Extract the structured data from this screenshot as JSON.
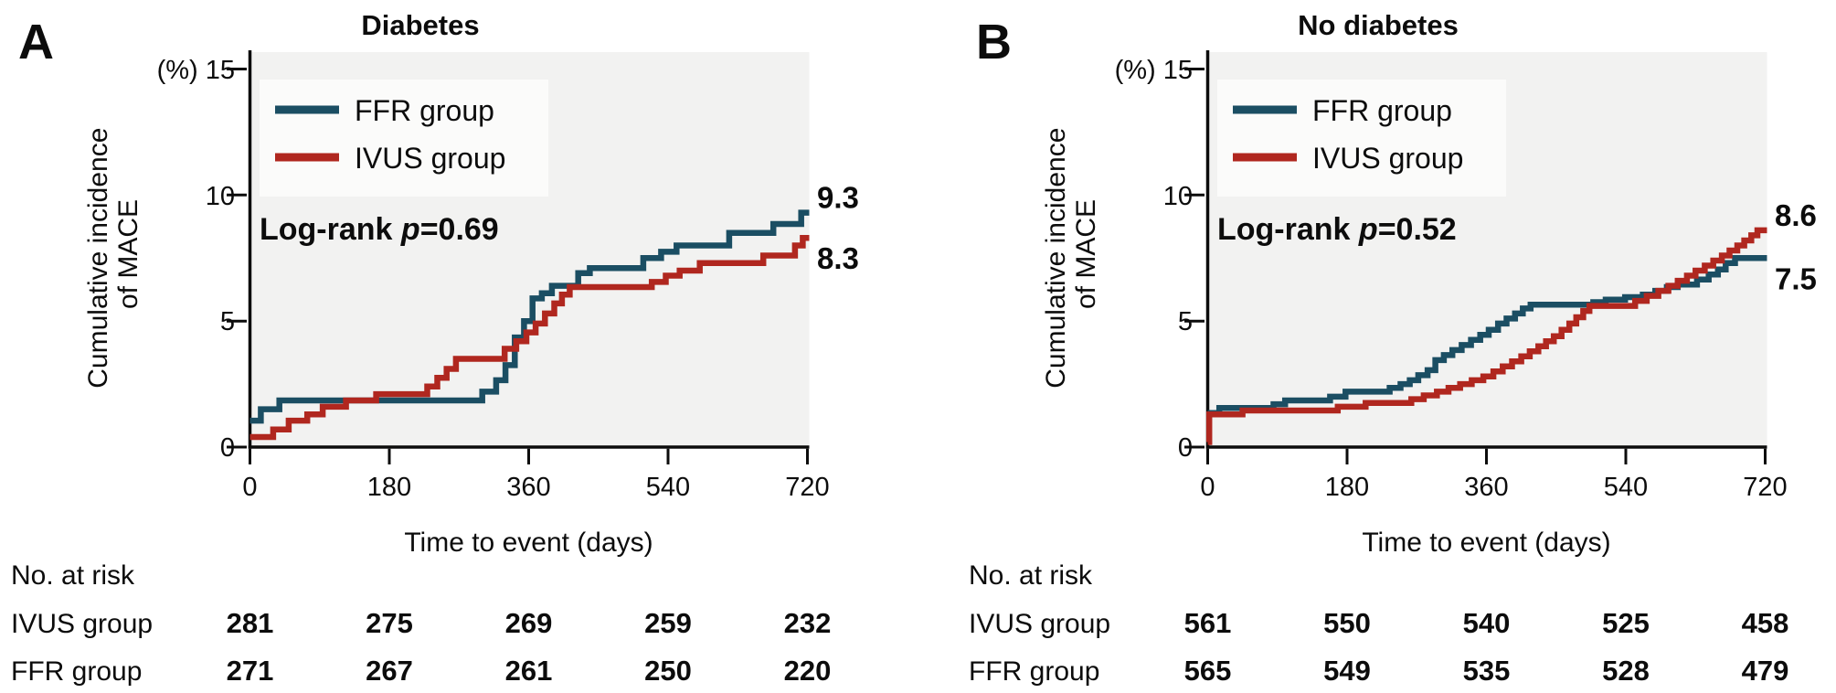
{
  "figure_colors": {
    "ffr_teal": "#1b4e63",
    "ivus_red": "#b0271f",
    "plot_bg": "#f2f2f1",
    "legend_bg": "#fbfbfa",
    "axis": "#0c0c0c"
  },
  "chart_data": [
    {
      "type": "line",
      "panel_letter": "A",
      "title": "Diabetes",
      "xlabel": "Time to event (days)",
      "ylabel": "Cumulative incidence of MACE",
      "ylabel_lines": [
        "Cumulative incidence",
        "of MACE"
      ],
      "y_top_label": "(%) 15",
      "xlim": [
        0,
        720
      ],
      "ylim": [
        0,
        15
      ],
      "xticks": [
        0,
        180,
        360,
        540,
        720
      ],
      "yticks": [
        0,
        5,
        10,
        15
      ],
      "xtick_labels": [
        "0",
        "180",
        "360",
        "540",
        "720"
      ],
      "ytick_labels": [
        "0",
        "5",
        "10"
      ],
      "grid": false,
      "legend_position": "upper-left-inside",
      "logrank": {
        "prefix": "Log-rank ",
        "p": "p",
        "rest": "=0.69",
        "full_text": "Log-rank p=0.69"
      },
      "series": [
        {
          "name": "FFR group",
          "color": "#1b4e63",
          "end_label": "9.3",
          "final_value": 9.3,
          "points": [
            [
              0,
              1.05
            ],
            [
              14,
              1.5
            ],
            [
              38,
              1.85
            ],
            [
              300,
              2.2
            ],
            [
              318,
              2.65
            ],
            [
              330,
              3.25
            ],
            [
              342,
              4.35
            ],
            [
              354,
              5.0
            ],
            [
              365,
              5.9
            ],
            [
              377,
              6.1
            ],
            [
              390,
              6.4
            ],
            [
              424,
              6.9
            ],
            [
              439,
              7.1
            ],
            [
              508,
              7.5
            ],
            [
              531,
              7.75
            ],
            [
              551,
              8.0
            ],
            [
              619,
              8.5
            ],
            [
              676,
              8.85
            ],
            [
              712,
              9.3
            ]
          ]
        },
        {
          "name": "IVUS group",
          "color": "#b0271f",
          "end_label": "8.3",
          "final_value": 8.3,
          "points": [
            [
              0,
              0.4
            ],
            [
              30,
              0.7
            ],
            [
              50,
              1.05
            ],
            [
              74,
              1.3
            ],
            [
              94,
              1.6
            ],
            [
              124,
              1.85
            ],
            [
              163,
              2.1
            ],
            [
              229,
              2.4
            ],
            [
              242,
              2.75
            ],
            [
              254,
              3.1
            ],
            [
              266,
              3.5
            ],
            [
              329,
              3.9
            ],
            [
              344,
              4.2
            ],
            [
              357,
              4.55
            ],
            [
              369,
              4.9
            ],
            [
              381,
              5.3
            ],
            [
              393,
              5.7
            ],
            [
              403,
              6.05
            ],
            [
              413,
              6.35
            ],
            [
              519,
              6.55
            ],
            [
              537,
              6.8
            ],
            [
              555,
              7.0
            ],
            [
              581,
              7.3
            ],
            [
              663,
              7.6
            ],
            [
              704,
              8.0
            ],
            [
              714,
              8.3
            ]
          ]
        }
      ],
      "at_risk": {
        "heading": "No. at risk",
        "rows": [
          {
            "label": "IVUS group",
            "color": "#1b4e63",
            "values": [
              "281",
              "275",
              "269",
              "259",
              "232"
            ]
          },
          {
            "label": "FFR group",
            "color": "#b0271f",
            "values": [
              "271",
              "267",
              "261",
              "250",
              "220"
            ]
          }
        ]
      }
    },
    {
      "type": "line",
      "panel_letter": "B",
      "title": "No diabetes",
      "xlabel": "Time to event (days)",
      "ylabel": "Cumulative incidence of MACE",
      "ylabel_lines": [
        "Cumulative incidence",
        "of MACE"
      ],
      "y_top_label": "(%) 15",
      "xlim": [
        0,
        720
      ],
      "ylim": [
        0,
        15
      ],
      "xticks": [
        0,
        180,
        360,
        540,
        720
      ],
      "yticks": [
        0,
        5,
        10,
        15
      ],
      "xtick_labels": [
        "0",
        "180",
        "360",
        "540",
        "720"
      ],
      "ytick_labels": [
        "0",
        "5",
        "10"
      ],
      "grid": false,
      "legend_position": "upper-left-inside",
      "logrank": {
        "prefix": "Log-rank ",
        "p": "p",
        "rest": "=0.52",
        "full_text": "Log-rank p=0.52"
      },
      "series": [
        {
          "name": "FFR group",
          "color": "#1b4e63",
          "end_label": "7.5",
          "final_value": 7.5,
          "points": [
            [
              0,
              1.35
            ],
            [
              15,
              1.55
            ],
            [
              85,
              1.7
            ],
            [
              100,
              1.85
            ],
            [
              158,
              2.0
            ],
            [
              178,
              2.2
            ],
            [
              235,
              2.35
            ],
            [
              249,
              2.5
            ],
            [
              261,
              2.65
            ],
            [
              272,
              2.85
            ],
            [
              284,
              3.05
            ],
            [
              294,
              3.45
            ],
            [
              305,
              3.65
            ],
            [
              316,
              3.85
            ],
            [
              328,
              4.05
            ],
            [
              340,
              4.25
            ],
            [
              352,
              4.45
            ],
            [
              363,
              4.65
            ],
            [
              375,
              4.9
            ],
            [
              386,
              5.1
            ],
            [
              397,
              5.3
            ],
            [
              407,
              5.5
            ],
            [
              417,
              5.65
            ],
            [
              498,
              5.75
            ],
            [
              514,
              5.85
            ],
            [
              539,
              5.95
            ],
            [
              562,
              6.05
            ],
            [
              578,
              6.2
            ],
            [
              593,
              6.35
            ],
            [
              607,
              6.45
            ],
            [
              632,
              6.65
            ],
            [
              647,
              6.85
            ],
            [
              659,
              7.05
            ],
            [
              669,
              7.3
            ],
            [
              681,
              7.5
            ]
          ]
        },
        {
          "name": "IVUS group",
          "color": "#b0271f",
          "end_label": "8.6",
          "final_value": 8.6,
          "points": [
            [
              0,
              0.2
            ],
            [
              2,
              1.3
            ],
            [
              45,
              1.45
            ],
            [
              168,
              1.6
            ],
            [
              204,
              1.75
            ],
            [
              263,
              1.9
            ],
            [
              279,
              2.05
            ],
            [
              296,
              2.2
            ],
            [
              311,
              2.35
            ],
            [
              326,
              2.5
            ],
            [
              341,
              2.65
            ],
            [
              356,
              2.8
            ],
            [
              369,
              3.0
            ],
            [
              381,
              3.2
            ],
            [
              393,
              3.4
            ],
            [
              405,
              3.6
            ],
            [
              416,
              3.8
            ],
            [
              427,
              4.0
            ],
            [
              437,
              4.2
            ],
            [
              447,
              4.4
            ],
            [
              457,
              4.65
            ],
            [
              467,
              4.9
            ],
            [
              476,
              5.15
            ],
            [
              485,
              5.4
            ],
            [
              493,
              5.6
            ],
            [
              552,
              5.8
            ],
            [
              567,
              6.0
            ],
            [
              582,
              6.2
            ],
            [
              595,
              6.4
            ],
            [
              607,
              6.6
            ],
            [
              619,
              6.8
            ],
            [
              630,
              7.0
            ],
            [
              642,
              7.2
            ],
            [
              653,
              7.4
            ],
            [
              664,
              7.6
            ],
            [
              674,
              7.8
            ],
            [
              684,
              8.0
            ],
            [
              693,
              8.2
            ],
            [
              702,
              8.4
            ],
            [
              710,
              8.6
            ]
          ]
        }
      ],
      "at_risk": {
        "heading": "No. at risk",
        "rows": [
          {
            "label": "IVUS group",
            "color": "#1b4e63",
            "values": [
              "561",
              "550",
              "540",
              "525",
              "458"
            ]
          },
          {
            "label": "FFR group",
            "color": "#b0271f",
            "values": [
              "565",
              "549",
              "535",
              "528",
              "479"
            ]
          }
        ]
      }
    }
  ]
}
